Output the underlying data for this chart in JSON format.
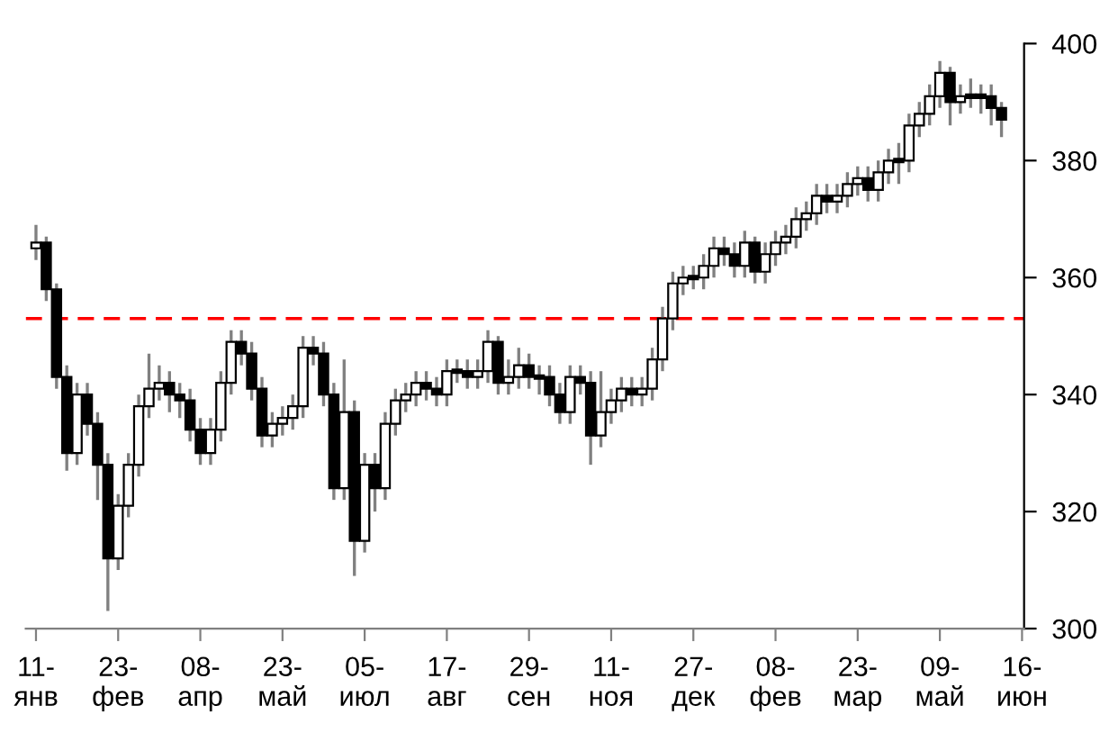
{
  "chart_data": {
    "type": "candlestick",
    "categories": [
      "11-янв",
      null,
      null,
      null,
      null,
      null,
      null,
      null,
      "23-фев",
      null,
      null,
      null,
      null,
      null,
      null,
      null,
      "08-апр",
      null,
      null,
      null,
      null,
      null,
      null,
      null,
      "23-май",
      null,
      null,
      null,
      null,
      null,
      null,
      null,
      "05-июл",
      null,
      null,
      null,
      null,
      null,
      null,
      null,
      "17-авг",
      null,
      null,
      null,
      null,
      null,
      null,
      null,
      "29-сен",
      null,
      null,
      null,
      null,
      null,
      null,
      null,
      "11-ноя",
      null,
      null,
      null,
      null,
      null,
      null,
      null,
      "27-дек",
      null,
      null,
      null,
      null,
      null,
      null,
      null,
      "08-фев",
      null,
      null,
      null,
      null,
      null,
      null,
      null,
      "23-мар",
      null,
      null,
      null,
      null,
      null,
      null,
      null,
      "09-май",
      null,
      null,
      null,
      null,
      null,
      null,
      null,
      "16-июн"
    ],
    "ohlc": [
      [
        365,
        369,
        363,
        366
      ],
      [
        366,
        367,
        356,
        358
      ],
      [
        358,
        359,
        341,
        343
      ],
      [
        343,
        345,
        327,
        330
      ],
      [
        330,
        342,
        328,
        340
      ],
      [
        340,
        342,
        333,
        335
      ],
      [
        335,
        337,
        322,
        328
      ],
      [
        328,
        330,
        303,
        312
      ],
      [
        312,
        323,
        310,
        321
      ],
      [
        321,
        330,
        319,
        328
      ],
      [
        328,
        340,
        326,
        338
      ],
      [
        338,
        347,
        336,
        341
      ],
      [
        341,
        345,
        339,
        342
      ],
      [
        342,
        344,
        337,
        340
      ],
      [
        340,
        342,
        336,
        339
      ],
      [
        339,
        341,
        332,
        334
      ],
      [
        334,
        336,
        328,
        330
      ],
      [
        330,
        336,
        328,
        334
      ],
      [
        334,
        344,
        332,
        342
      ],
      [
        342,
        351,
        340,
        349
      ],
      [
        349,
        351,
        345,
        347
      ],
      [
        347,
        349,
        339,
        341
      ],
      [
        341,
        343,
        331,
        333
      ],
      [
        333,
        337,
        331,
        335
      ],
      [
        335,
        338,
        333,
        336
      ],
      [
        336,
        340,
        334,
        338
      ],
      [
        338,
        350,
        336,
        348
      ],
      [
        348,
        350,
        345,
        347
      ],
      [
        347,
        349,
        338,
        340
      ],
      [
        340,
        342,
        322,
        324
      ],
      [
        324,
        346,
        322,
        337
      ],
      [
        337,
        339,
        309,
        315
      ],
      [
        315,
        330,
        313,
        328
      ],
      [
        328,
        330,
        320,
        324
      ],
      [
        324,
        337,
        322,
        335
      ],
      [
        335,
        341,
        333,
        339
      ],
      [
        339,
        342,
        337,
        340
      ],
      [
        340,
        344,
        338,
        342
      ],
      [
        342,
        344,
        339,
        341
      ],
      [
        341,
        343,
        338,
        340
      ],
      [
        340,
        346,
        338,
        344
      ],
      [
        344,
        346,
        342,
        344
      ],
      [
        344,
        346,
        341,
        343
      ],
      [
        343,
        346,
        341,
        344
      ],
      [
        344,
        351,
        342,
        349
      ],
      [
        349,
        350,
        340,
        342
      ],
      [
        342,
        346,
        340,
        343
      ],
      [
        343,
        348,
        341,
        345
      ],
      [
        345,
        347,
        341,
        343
      ],
      [
        343,
        345,
        340,
        343
      ],
      [
        343,
        345,
        338,
        340
      ],
      [
        340,
        342,
        335,
        337
      ],
      [
        337,
        345,
        335,
        343
      ],
      [
        343,
        345,
        340,
        342
      ],
      [
        342,
        344,
        328,
        333
      ],
      [
        333,
        344,
        331,
        337
      ],
      [
        337,
        341,
        335,
        339
      ],
      [
        339,
        343,
        337,
        341
      ],
      [
        341,
        343,
        338,
        340
      ],
      [
        340,
        343,
        338,
        341
      ],
      [
        341,
        348,
        339,
        346
      ],
      [
        346,
        355,
        344,
        353
      ],
      [
        353,
        361,
        351,
        359
      ],
      [
        359,
        362,
        357,
        360
      ],
      [
        360,
        362,
        358,
        360
      ],
      [
        360,
        364,
        358,
        362
      ],
      [
        362,
        367,
        360,
        365
      ],
      [
        365,
        367,
        362,
        364
      ],
      [
        364,
        366,
        360,
        362
      ],
      [
        362,
        368,
        360,
        366
      ],
      [
        366,
        367,
        359,
        361
      ],
      [
        361,
        366,
        359,
        364
      ],
      [
        364,
        368,
        362,
        366
      ],
      [
        366,
        369,
        364,
        367
      ],
      [
        367,
        372,
        365,
        370
      ],
      [
        370,
        373,
        368,
        371
      ],
      [
        371,
        376,
        369,
        374
      ],
      [
        374,
        376,
        371,
        373
      ],
      [
        373,
        376,
        371,
        374
      ],
      [
        374,
        378,
        372,
        376
      ],
      [
        376,
        379,
        374,
        377
      ],
      [
        377,
        379,
        373,
        375
      ],
      [
        375,
        380,
        373,
        378
      ],
      [
        378,
        382,
        376,
        380
      ],
      [
        380,
        383,
        376,
        380
      ],
      [
        380,
        388,
        378,
        386
      ],
      [
        386,
        390,
        384,
        388
      ],
      [
        388,
        393,
        386,
        391
      ],
      [
        391,
        397,
        389,
        395
      ],
      [
        395,
        396,
        386,
        390
      ],
      [
        390,
        393,
        388,
        391
      ],
      [
        391,
        394,
        389,
        391
      ],
      [
        391,
        393,
        388,
        391
      ],
      [
        391,
        393,
        386,
        389
      ],
      [
        389,
        390,
        384,
        387
      ],
      null,
      null
    ],
    "ylim": [
      300,
      400
    ],
    "yticks": [
      300,
      320,
      340,
      360,
      380,
      400
    ],
    "ref_lines": [
      {
        "axis": "y",
        "value": 353,
        "color": "#ff0000",
        "line_style": "dashed"
      }
    ],
    "grid": false,
    "legend": false
  }
}
